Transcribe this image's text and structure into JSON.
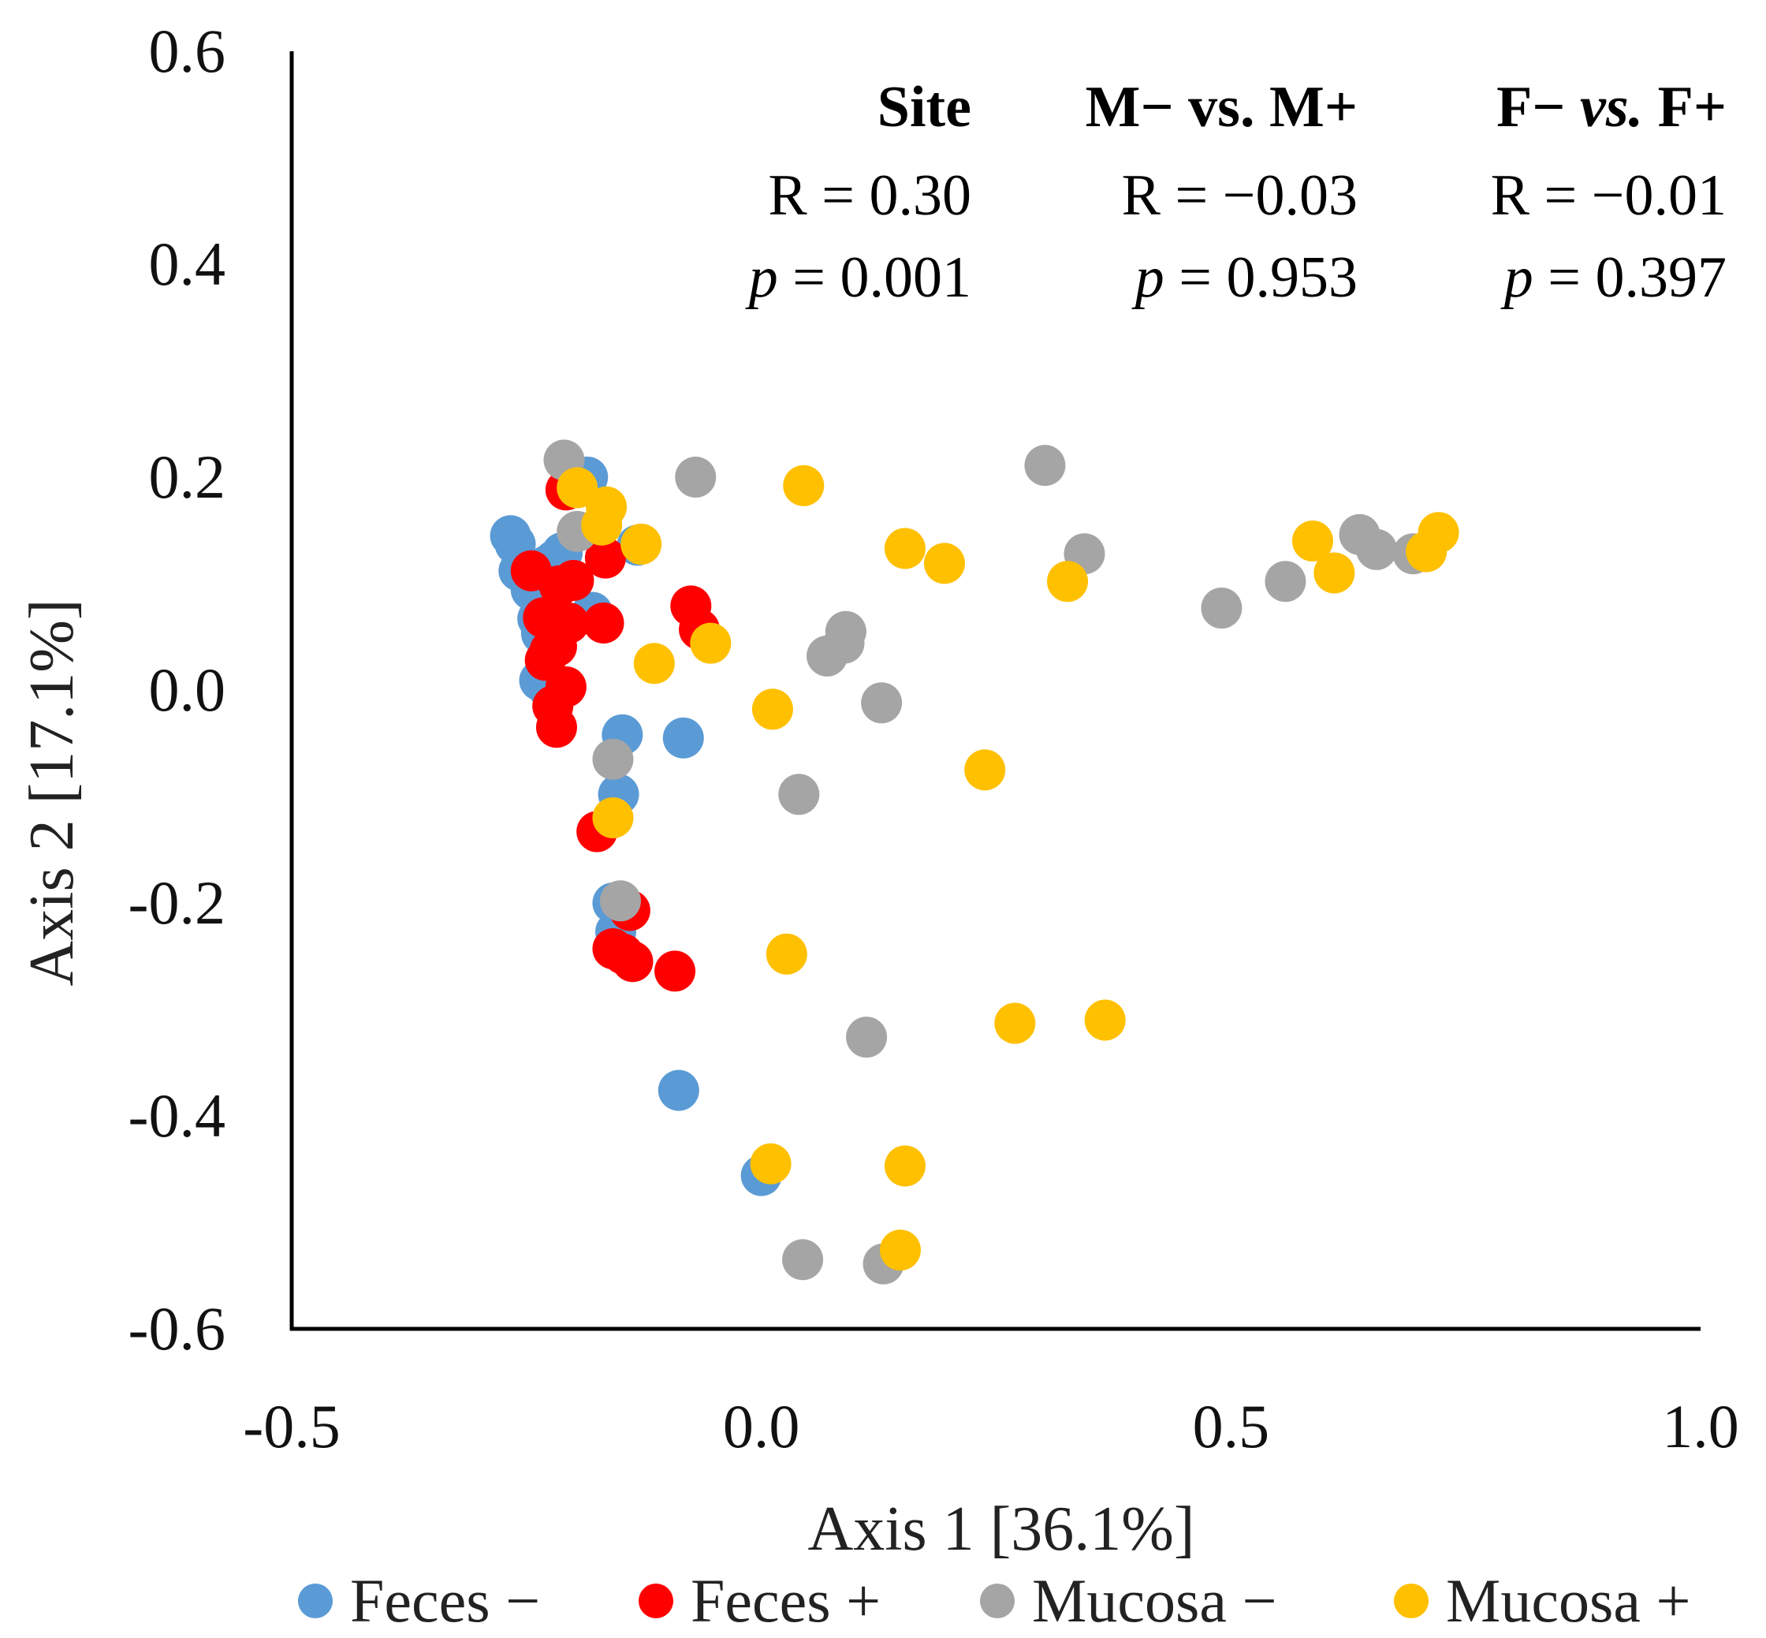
{
  "chart_data": {
    "type": "scatter",
    "xlabel": "Axis 1 [36.1%]",
    "ylabel": "Axis 2 [17.1%]",
    "xlim": [
      -0.5,
      1.0
    ],
    "ylim": [
      -0.6,
      0.6
    ],
    "x_ticks": [
      "-0.5",
      "0.0",
      "0.5",
      "1.0"
    ],
    "y_ticks": [
      "0.6",
      "0.4",
      "0.2",
      "0.0",
      "-0.2",
      "-0.4",
      "-0.6"
    ],
    "grid": false,
    "legend_position": "bottom",
    "stats": [
      {
        "head": "Site",
        "head_parts": [
          "Site"
        ],
        "r": "R = 0.30",
        "p_label": "p",
        "p_value": "= 0.001"
      },
      {
        "head": "M− vs. M+",
        "head_parts": [
          "M− vs. M+"
        ],
        "r": "R = −0.03",
        "p_label": "p",
        "p_value": "= 0.953"
      },
      {
        "head": "F− vs. F+",
        "head_parts": [
          "F− ",
          "vs.",
          " F+"
        ],
        "r": "R = −0.01",
        "p_label": "p",
        "p_value": "= 0.397"
      }
    ],
    "series": [
      {
        "name": "Feces −",
        "color": "#5B9BD5",
        "points": [
          [
            -0.267,
            0.145
          ],
          [
            -0.262,
            0.137
          ],
          [
            -0.258,
            0.112
          ],
          [
            -0.245,
            0.094
          ],
          [
            -0.238,
            0.067
          ],
          [
            -0.234,
            0.053
          ],
          [
            -0.228,
            0.117
          ],
          [
            -0.22,
            0.122
          ],
          [
            -0.212,
            0.129
          ],
          [
            -0.236,
            0.009
          ],
          [
            -0.228,
            0.003
          ],
          [
            -0.185,
            0.2
          ],
          [
            -0.18,
            0.073
          ],
          [
            -0.132,
            0.136
          ],
          [
            -0.148,
            -0.042
          ],
          [
            -0.152,
            -0.098
          ],
          [
            -0.158,
            -0.2
          ],
          [
            -0.155,
            -0.227
          ],
          [
            -0.083,
            -0.045
          ],
          [
            -0.088,
            -0.376
          ],
          [
            0.0,
            -0.456
          ]
        ]
      },
      {
        "name": "Feces +",
        "color": "#FF0000",
        "points": [
          [
            -0.245,
            0.112
          ],
          [
            -0.232,
            0.068
          ],
          [
            -0.226,
            0.068
          ],
          [
            -0.215,
            0.098
          ],
          [
            -0.205,
            0.063
          ],
          [
            -0.2,
            0.103
          ],
          [
            -0.23,
            0.028
          ],
          [
            -0.225,
            0.037
          ],
          [
            -0.218,
            0.041
          ],
          [
            -0.208,
            0.003
          ],
          [
            -0.222,
            -0.015
          ],
          [
            -0.218,
            -0.035
          ],
          [
            -0.208,
            0.188
          ],
          [
            -0.166,
            0.124
          ],
          [
            -0.168,
            0.063
          ],
          [
            -0.075,
            0.079
          ],
          [
            -0.066,
            0.057
          ],
          [
            -0.175,
            -0.133
          ],
          [
            -0.158,
            -0.243
          ],
          [
            -0.147,
            -0.248
          ],
          [
            -0.14,
            -0.207
          ],
          [
            -0.137,
            -0.255
          ],
          [
            -0.092,
            -0.264
          ]
        ]
      },
      {
        "name": "Mucosa −",
        "color": "#A5A5A5",
        "points": [
          [
            -0.21,
            0.216
          ],
          [
            -0.196,
            0.149
          ],
          [
            -0.158,
            -0.065
          ],
          [
            -0.15,
            -0.198
          ],
          [
            -0.07,
            0.2
          ],
          [
            0.04,
            -0.098
          ],
          [
            0.07,
            0.032
          ],
          [
            0.088,
            0.044
          ],
          [
            0.09,
            0.055
          ],
          [
            0.128,
            -0.012
          ],
          [
            0.112,
            -0.326
          ],
          [
            0.044,
            -0.535
          ],
          [
            0.13,
            -0.539
          ],
          [
            0.302,
            0.211
          ],
          [
            0.344,
            0.128
          ],
          [
            0.49,
            0.077
          ],
          [
            0.558,
            0.102
          ],
          [
            0.637,
            0.146
          ],
          [
            0.655,
            0.132
          ],
          [
            0.694,
            0.128
          ]
        ]
      },
      {
        "name": "Mucosa +",
        "color": "#FFC000",
        "points": [
          [
            -0.196,
            0.19
          ],
          [
            -0.165,
            0.172
          ],
          [
            -0.17,
            0.155
          ],
          [
            -0.128,
            0.137
          ],
          [
            -0.114,
            0.025
          ],
          [
            -0.054,
            0.044
          ],
          [
            -0.158,
            -0.12
          ],
          [
            0.045,
            0.192
          ],
          [
            0.012,
            -0.018
          ],
          [
            0.027,
            -0.248
          ],
          [
            0.01,
            -0.445
          ],
          [
            0.153,
            0.133
          ],
          [
            0.195,
            0.119
          ],
          [
            0.153,
            -0.447
          ],
          [
            0.148,
            -0.526
          ],
          [
            0.238,
            -0.075
          ],
          [
            0.27,
            -0.313
          ],
          [
            0.326,
            0.102
          ],
          [
            0.366,
            -0.31
          ],
          [
            0.587,
            0.14
          ],
          [
            0.61,
            0.11
          ],
          [
            0.708,
            0.13
          ],
          [
            0.721,
            0.148
          ]
        ]
      }
    ]
  }
}
